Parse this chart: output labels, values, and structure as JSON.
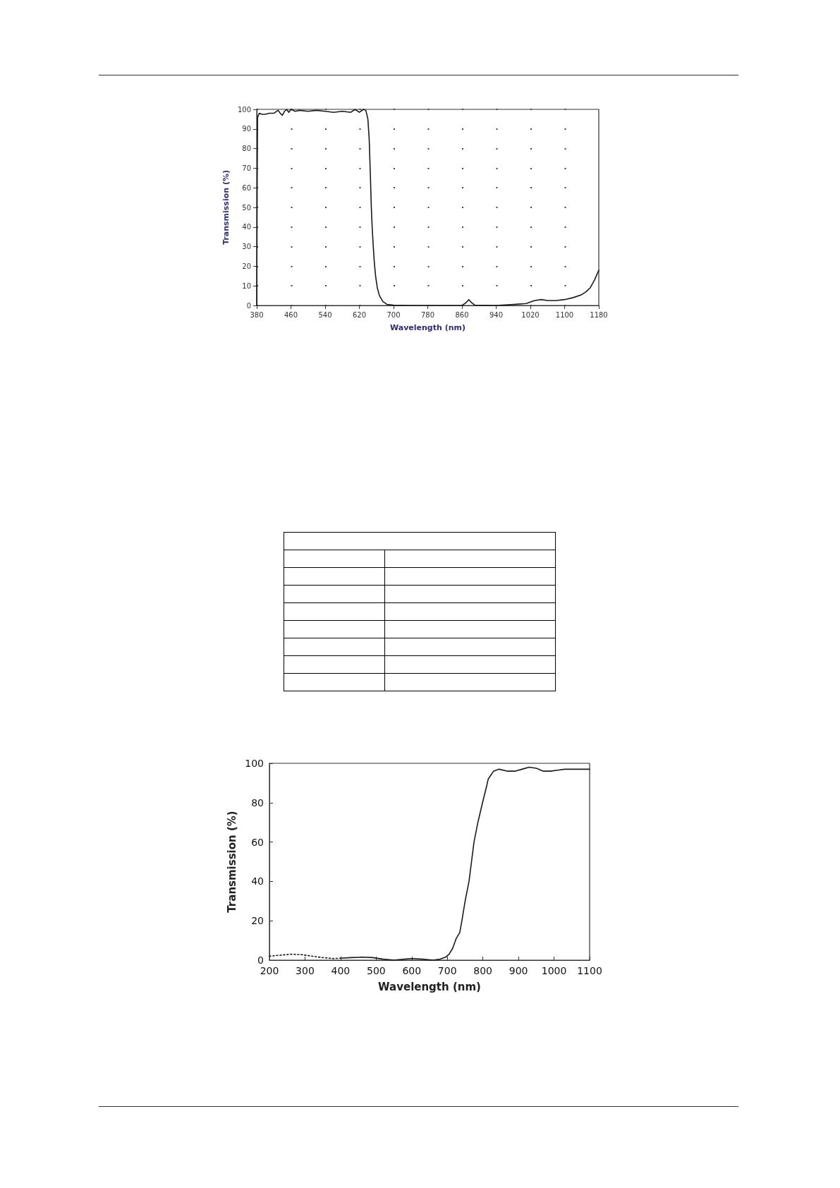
{
  "chart_data": [
    {
      "type": "line",
      "xlabel": "Wavelength (nm)",
      "ylabel": "Transmission (%)",
      "xlim": [
        380,
        1180
      ],
      "xticks": [
        380,
        460,
        540,
        620,
        700,
        780,
        860,
        940,
        1020,
        1100,
        1180
      ],
      "ylim": [
        0,
        100
      ],
      "yticks": [
        0,
        10,
        20,
        30,
        40,
        50,
        60,
        70,
        80,
        90,
        100
      ],
      "grid": true,
      "marker": "none",
      "series": [
        {
          "color": "#1a1a1a",
          "line_style": "solid",
          "x": [
            380,
            381,
            382,
            386,
            392,
            400,
            410,
            420,
            430,
            435,
            440,
            445,
            450,
            455,
            460,
            470,
            480,
            500,
            520,
            540,
            560,
            580,
            600,
            610,
            620,
            630,
            635,
            638,
            640,
            643,
            646,
            648,
            650,
            652,
            655,
            658,
            662,
            667,
            675,
            685,
            700,
            740,
            860,
            870,
            876,
            882,
            890,
            940,
            980,
            1010,
            1030,
            1045,
            1060,
            1080,
            1100,
            1120,
            1140,
            1150,
            1160,
            1170,
            1180
          ],
          "values": [
            0,
            60,
            96,
            98,
            97.5,
            97.5,
            98,
            98,
            99.5,
            98,
            97,
            99,
            100,
            98.5,
            100,
            99,
            99.5,
            99,
            99.5,
            99,
            98.5,
            99,
            98.5,
            100,
            98.5,
            100,
            99.5,
            97,
            95,
            85,
            65,
            50,
            40,
            32,
            22,
            15,
            9,
            5,
            2,
            0.5,
            0.2,
            0,
            0,
            1.5,
            3,
            1.5,
            0.2,
            0,
            0.5,
            1,
            2.5,
            3,
            2.5,
            2.5,
            3,
            4,
            5.5,
            7,
            9,
            13,
            18
          ]
        }
      ]
    },
    {
      "type": "line",
      "xlabel": "Wavelength (nm)",
      "ylabel": "Transmission (%)",
      "xlim": [
        200,
        1100
      ],
      "xticks": [
        200,
        300,
        400,
        500,
        600,
        700,
        800,
        900,
        1000,
        1100
      ],
      "ylim": [
        0,
        100
      ],
      "yticks": [
        0,
        20,
        40,
        60,
        80,
        100
      ],
      "grid": false,
      "marker": "none",
      "series": [
        {
          "color": "#1a1a1a",
          "line_style": "dotted",
          "x": [
            200,
            230,
            260,
            290,
            320,
            350,
            380,
            400
          ],
          "values": [
            2,
            2.5,
            3,
            2.8,
            2,
            1.3,
            0.8,
            1
          ]
        },
        {
          "color": "#1a1a1a",
          "line_style": "solid",
          "x": [
            400,
            430,
            460,
            490,
            520,
            550,
            580,
            600,
            630,
            660,
            680,
            695,
            705,
            715,
            725,
            735,
            741,
            750,
            761,
            768,
            775,
            786,
            799,
            810,
            815,
            830,
            845,
            870,
            890,
            910,
            930,
            950,
            970,
            990,
            1010,
            1030,
            1060,
            1100
          ],
          "values": [
            1,
            1.3,
            1.5,
            1.3,
            0.5,
            0,
            0.5,
            0.8,
            0.5,
            0,
            0.5,
            1.5,
            3,
            6,
            11,
            14,
            20,
            30,
            40,
            50,
            60,
            70,
            80,
            88,
            92,
            96,
            97,
            96,
            96,
            97,
            98,
            97.5,
            96,
            96,
            96.5,
            97,
            97,
            97
          ]
        }
      ]
    }
  ]
}
